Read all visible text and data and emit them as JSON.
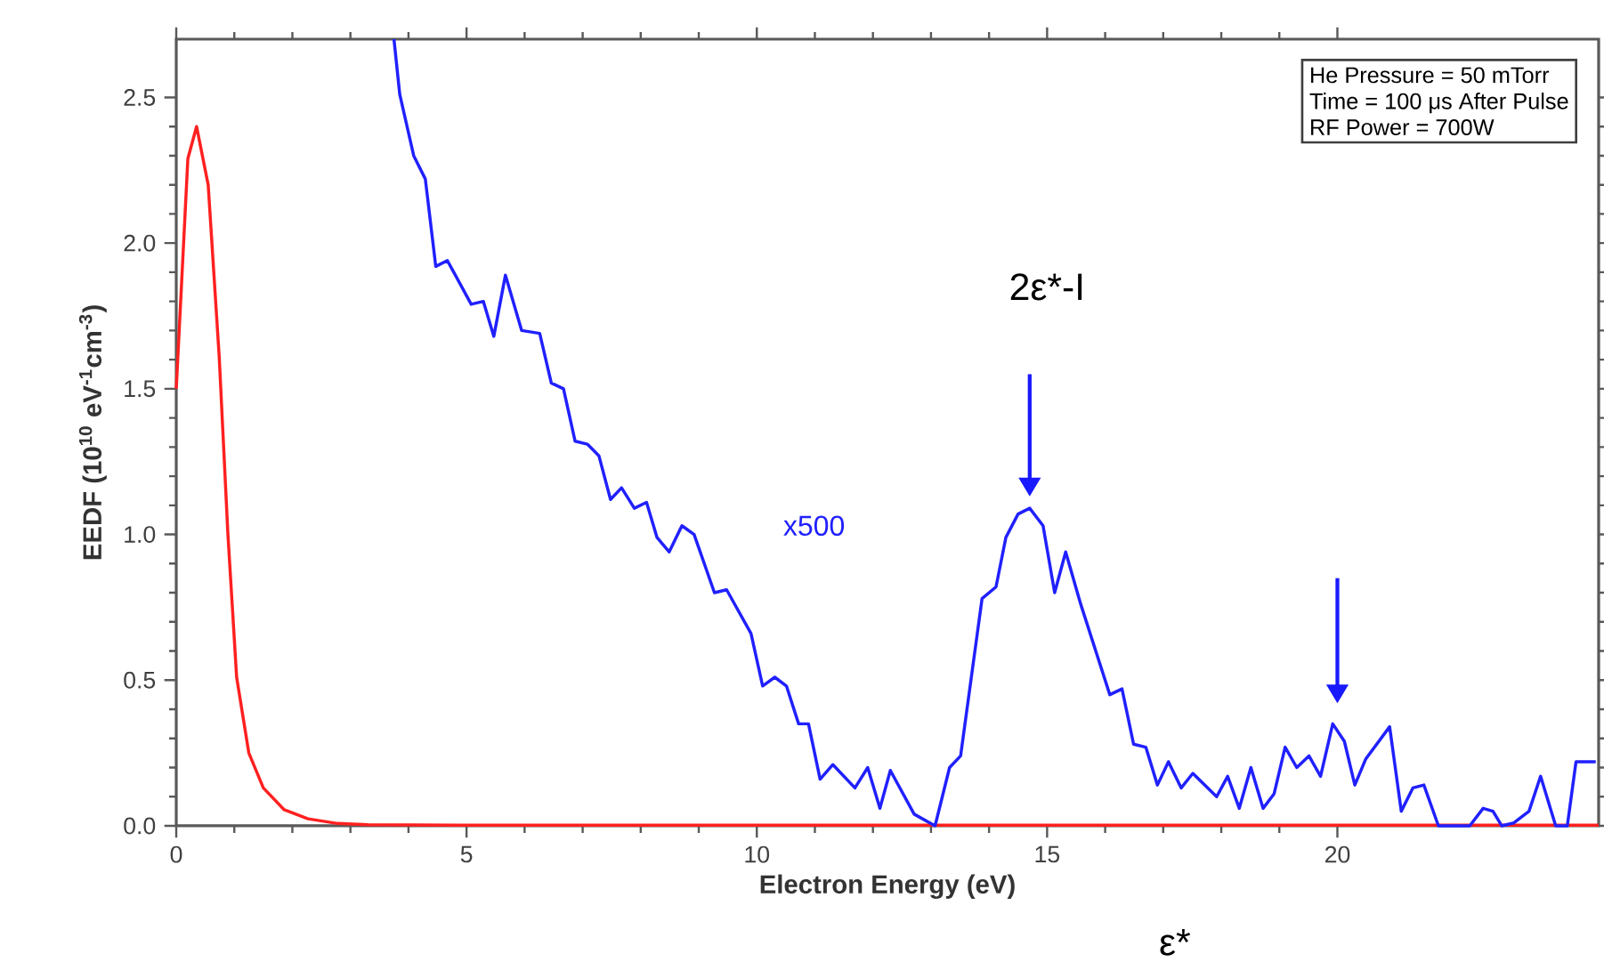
{
  "chart_data": {
    "type": "line",
    "xlabel": "Electron Energy (eV)",
    "ylabel": "**EEDF (10$^{10}$ eV$^{-1}$cm$^{-3}$)**",
    "xlim": [
      0,
      24.5
    ],
    "ylim": [
      0,
      2.7
    ],
    "xticks": [
      0,
      5,
      10,
      15,
      20
    ],
    "yticks": [
      {
        "value": 0,
        "label": "0.0"
      },
      {
        "value": 0.5,
        "label": "0.5"
      },
      {
        "value": 1,
        "label": "1.0"
      },
      {
        "value": 1.5,
        "label": "1.5"
      },
      {
        "value": 2,
        "label": "2.0"
      },
      {
        "value": 2.5,
        "label": "2.5"
      }
    ],
    "grid": false,
    "legend": false,
    "marker": "none",
    "line_style": "solid",
    "series": [
      {
        "color": "#ff2020",
        "x": [
          0,
          0.2,
          0.35,
          0.55,
          0.74,
          0.89,
          1.04,
          1.25,
          1.5,
          1.86,
          2.27,
          2.78,
          3.3,
          5,
          10,
          15,
          20,
          24.5
        ],
        "values": [
          1.5,
          2.29,
          2.4,
          2.2,
          1.61,
          1.0,
          0.51,
          0.25,
          0.13,
          0.055,
          0.024,
          0.008,
          0.004,
          0.002,
          0.002,
          0.002,
          0.002,
          0.002
        ]
      },
      {
        "name": "x500",
        "color": "#2020ff",
        "x": [
          3.75,
          3.85,
          4.09,
          4.29,
          4.47,
          4.67,
          5.08,
          5.29,
          5.47,
          5.67,
          5.95,
          6.26,
          6.46,
          6.67,
          6.87,
          7.08,
          7.28,
          7.48,
          7.67,
          7.89,
          8.1,
          8.28,
          8.49,
          8.71,
          8.92,
          9.27,
          9.48,
          9.9,
          10.1,
          10.31,
          10.51,
          10.72,
          10.89,
          11.09,
          11.31,
          11.69,
          11.91,
          12.12,
          12.3,
          12.71,
          13.07,
          13.32,
          13.51,
          13.88,
          14.12,
          14.29,
          14.5,
          14.7,
          14.93,
          15.13,
          15.32,
          15.58,
          16.08,
          16.29,
          16.49,
          16.7,
          16.9,
          17.09,
          17.31,
          17.51,
          17.92,
          18.11,
          18.31,
          18.51,
          18.72,
          18.91,
          19.1,
          19.3,
          19.51,
          19.71,
          19.92,
          20.12,
          20.3,
          20.49,
          20.9,
          21.1,
          21.3,
          21.49,
          21.74,
          22.28,
          22.51,
          22.68,
          22.83,
          23.04,
          23.3,
          23.5,
          23.76,
          23.96,
          24.11,
          24.45
        ],
        "values": [
          2.7,
          2.51,
          2.3,
          2.22,
          1.92,
          1.94,
          1.79,
          1.8,
          1.68,
          1.89,
          1.7,
          1.69,
          1.52,
          1.5,
          1.32,
          1.31,
          1.27,
          1.12,
          1.16,
          1.09,
          1.11,
          0.99,
          0.94,
          1.03,
          1.0,
          0.8,
          0.81,
          0.66,
          0.48,
          0.51,
          0.48,
          0.35,
          0.35,
          0.16,
          0.21,
          0.13,
          0.2,
          0.06,
          0.19,
          0.04,
          0.0,
          0.2,
          0.24,
          0.78,
          0.82,
          0.99,
          1.07,
          1.09,
          1.03,
          0.8,
          0.94,
          0.76,
          0.45,
          0.47,
          0.28,
          0.27,
          0.14,
          0.22,
          0.13,
          0.18,
          0.1,
          0.17,
          0.06,
          0.2,
          0.06,
          0.11,
          0.27,
          0.2,
          0.24,
          0.17,
          0.35,
          0.29,
          0.14,
          0.23,
          0.34,
          0.05,
          0.13,
          0.14,
          0.0,
          0.0,
          0.06,
          0.05,
          0.0,
          0.01,
          0.05,
          0.17,
          0.0,
          0.0,
          0.22,
          0.22
        ]
      }
    ],
    "annotations": [
      "2ε*-I",
      "ε*",
      "He Pressure = 50 mTorr",
      "Time = 100 μs After Pulse",
      "RF Power = 700W"
    ]
  }
}
